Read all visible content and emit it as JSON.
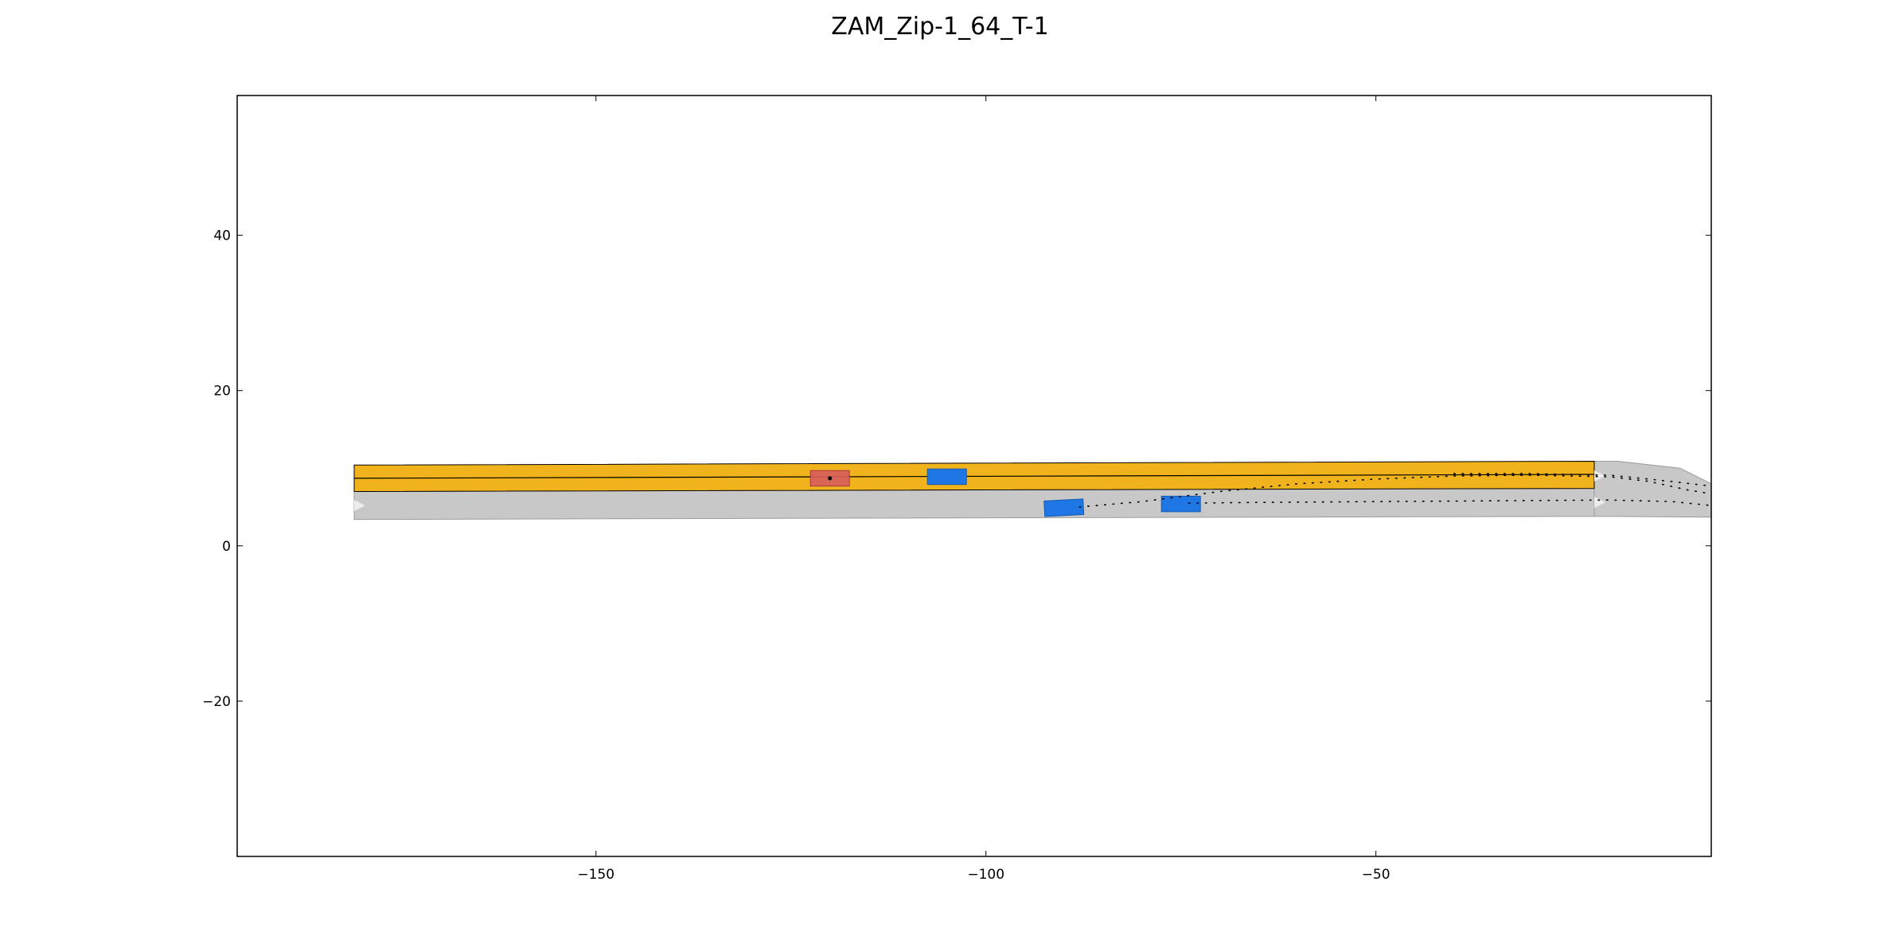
{
  "chart_data": {
    "type": "scatter",
    "title": "ZAM_Zip-1_64_T-1",
    "xlabel": "",
    "ylabel": "",
    "xlim": [
      -196,
      -7
    ],
    "ylim": [
      -40,
      58
    ],
    "xticks": [
      -150,
      -100,
      -50
    ],
    "xtick_labels": [
      "−150",
      "−100",
      "−50"
    ],
    "yticks": [
      -20,
      0,
      20,
      40
    ],
    "ytick_labels": [
      "−20",
      "0",
      "20",
      "40"
    ],
    "grid": false,
    "colors": {
      "road": "#c8c8c8",
      "road_edge": "#9a9a9a",
      "planning_lane": "#f1b31c",
      "ego_vehicle": "#d65c5c",
      "other_vehicle": "#1f77e6"
    },
    "road": {
      "main_lane": [
        [
          -181,
          7.0
        ],
        [
          -22,
          7.4
        ],
        [
          -22,
          3.8
        ],
        [
          -181,
          3.4
        ]
      ],
      "merge_lane": [
        [
          -22,
          10.9
        ],
        [
          -19,
          10.9
        ],
        [
          -11,
          10.0
        ],
        [
          -7,
          8.0
        ],
        [
          -7,
          3.7
        ],
        [
          -22,
          3.8
        ]
      ]
    },
    "planning_lane": [
      [
        -181,
        10.4
      ],
      [
        -22,
        10.9
      ],
      [
        -22,
        7.4
      ],
      [
        -181,
        7.0
      ]
    ],
    "planning_centerline": [
      [
        -181,
        8.7
      ],
      [
        -22,
        9.2
      ]
    ],
    "ego_vehicle": {
      "x": -120.0,
      "y": 8.7,
      "length": 5.0,
      "width": 2.0,
      "angle": 0
    },
    "other_vehicles": [
      {
        "x": -105.0,
        "y": 8.9,
        "length": 5.0,
        "width": 2.0,
        "angle": 0
      },
      {
        "x": -90.0,
        "y": 4.9,
        "length": 5.0,
        "width": 2.0,
        "angle": 3
      },
      {
        "x": -75.0,
        "y": 5.4,
        "length": 5.0,
        "width": 2.0,
        "angle": 0
      }
    ],
    "trajectories": [
      {
        "points": [
          [
            -88.0,
            5.0
          ],
          [
            -80.0,
            5.7
          ],
          [
            -70.0,
            7.0
          ],
          [
            -60.0,
            8.0
          ],
          [
            -50.0,
            8.6
          ],
          [
            -40.0,
            9.0
          ],
          [
            -30.0,
            9.1
          ],
          [
            -20.0,
            8.9
          ],
          [
            -15.0,
            8.3
          ],
          [
            -10.0,
            7.2
          ],
          [
            -7.0,
            6.7
          ]
        ]
      },
      {
        "points": [
          [
            -74.0,
            5.5
          ],
          [
            -65.0,
            5.6
          ],
          [
            -50.0,
            5.7
          ],
          [
            -35.0,
            5.8
          ],
          [
            -20.0,
            5.9
          ],
          [
            -12.0,
            5.7
          ],
          [
            -7.0,
            5.2
          ]
        ]
      },
      {
        "points": [
          [
            -40.0,
            9.3
          ],
          [
            -30.0,
            9.3
          ],
          [
            -20.0,
            9.1
          ],
          [
            -14.0,
            8.5
          ],
          [
            -7.0,
            7.7
          ]
        ]
      }
    ]
  }
}
